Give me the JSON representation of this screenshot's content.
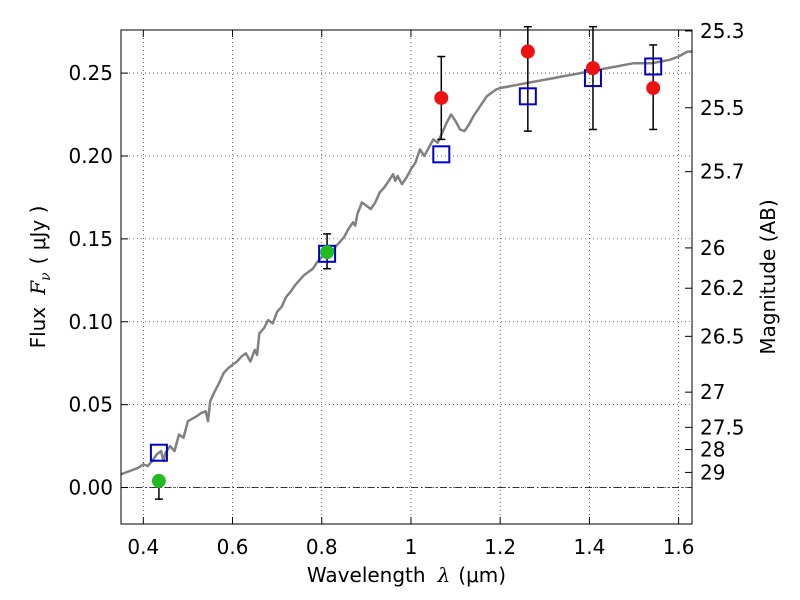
{
  "chart_data": {
    "type": "scatter",
    "xlabel_prefix": "Wavelength",
    "xlabel_symbol": "λ",
    "xlabel_unit": "(μm)",
    "ylabel_prefix": "Flux",
    "ylabel_symbol": "F",
    "ylabel_subscript": "ν",
    "ylabel_unit": "( μJy )",
    "y2label": "Magnitude (AB)",
    "xlim": [
      0.35,
      1.63
    ],
    "ylim": [
      -0.022,
      0.276
    ],
    "x_ticks": [
      {
        "value": 0.4,
        "label": "0.4"
      },
      {
        "value": 0.6,
        "label": "0.6"
      },
      {
        "value": 0.8,
        "label": "0.8"
      },
      {
        "value": 1.0,
        "label": "1"
      },
      {
        "value": 1.2,
        "label": "1.2"
      },
      {
        "value": 1.4,
        "label": "1.4"
      },
      {
        "value": 1.6,
        "label": "1.6"
      }
    ],
    "y_ticks": [
      {
        "value": 0.0,
        "label": "0.00"
      },
      {
        "value": 0.05,
        "label": "0.05"
      },
      {
        "value": 0.1,
        "label": "0.10"
      },
      {
        "value": 0.15,
        "label": "0.15"
      },
      {
        "value": 0.2,
        "label": "0.20"
      },
      {
        "value": 0.25,
        "label": "0.25"
      }
    ],
    "y2_ticks": [
      {
        "mag": 25.3,
        "label": "25.3"
      },
      {
        "mag": 25.5,
        "label": "25.5"
      },
      {
        "mag": 25.7,
        "label": "25.7"
      },
      {
        "mag": 26.0,
        "label": "26"
      },
      {
        "mag": 26.2,
        "label": "26.2"
      },
      {
        "mag": 26.5,
        "label": "26.5"
      },
      {
        "mag": 27.0,
        "label": "27"
      },
      {
        "mag": 27.5,
        "label": "27.5"
      },
      {
        "mag": 28.0,
        "label": "28"
      },
      {
        "mag": 29.0,
        "label": "29"
      }
    ],
    "grid": true,
    "zero_line": true,
    "model_spectrum": {
      "color": "#808080",
      "points": [
        [
          0.35,
          0.008
        ],
        [
          0.37,
          0.01
        ],
        [
          0.39,
          0.012
        ],
        [
          0.4,
          0.014
        ],
        [
          0.41,
          0.013
        ],
        [
          0.42,
          0.016
        ],
        [
          0.43,
          0.02
        ],
        [
          0.44,
          0.022
        ],
        [
          0.445,
          0.016
        ],
        [
          0.45,
          0.021
        ],
        [
          0.46,
          0.025
        ],
        [
          0.47,
          0.022
        ],
        [
          0.48,
          0.032
        ],
        [
          0.49,
          0.03
        ],
        [
          0.5,
          0.04
        ],
        [
          0.52,
          0.043
        ],
        [
          0.53,
          0.045
        ],
        [
          0.54,
          0.046
        ],
        [
          0.545,
          0.04
        ],
        [
          0.55,
          0.052
        ],
        [
          0.56,
          0.058
        ],
        [
          0.57,
          0.063
        ],
        [
          0.58,
          0.069
        ],
        [
          0.59,
          0.072
        ],
        [
          0.6,
          0.074
        ],
        [
          0.61,
          0.076
        ],
        [
          0.62,
          0.079
        ],
        [
          0.63,
          0.081
        ],
        [
          0.64,
          0.076
        ],
        [
          0.65,
          0.083
        ],
        [
          0.655,
          0.08
        ],
        [
          0.66,
          0.093
        ],
        [
          0.67,
          0.096
        ],
        [
          0.68,
          0.101
        ],
        [
          0.69,
          0.099
        ],
        [
          0.7,
          0.106
        ],
        [
          0.71,
          0.109
        ],
        [
          0.72,
          0.115
        ],
        [
          0.73,
          0.118
        ],
        [
          0.74,
          0.122
        ],
        [
          0.75,
          0.125
        ],
        [
          0.76,
          0.128
        ],
        [
          0.77,
          0.13
        ],
        [
          0.78,
          0.132
        ],
        [
          0.79,
          0.136
        ],
        [
          0.8,
          0.139
        ],
        [
          0.81,
          0.141
        ],
        [
          0.82,
          0.14
        ],
        [
          0.83,
          0.145
        ],
        [
          0.84,
          0.148
        ],
        [
          0.85,
          0.151
        ],
        [
          0.86,
          0.156
        ],
        [
          0.87,
          0.16
        ],
        [
          0.875,
          0.158
        ],
        [
          0.88,
          0.165
        ],
        [
          0.89,
          0.172
        ],
        [
          0.9,
          0.17
        ],
        [
          0.91,
          0.168
        ],
        [
          0.92,
          0.172
        ],
        [
          0.93,
          0.178
        ],
        [
          0.94,
          0.181
        ],
        [
          0.95,
          0.185
        ],
        [
          0.96,
          0.189
        ],
        [
          0.965,
          0.185
        ],
        [
          0.97,
          0.188
        ],
        [
          0.98,
          0.183
        ],
        [
          0.99,
          0.187
        ],
        [
          1.0,
          0.192
        ],
        [
          1.01,
          0.196
        ],
        [
          1.02,
          0.204
        ],
        [
          1.03,
          0.2
        ],
        [
          1.04,
          0.205
        ],
        [
          1.05,
          0.21
        ],
        [
          1.06,
          0.208
        ],
        [
          1.07,
          0.214
        ],
        [
          1.08,
          0.22
        ],
        [
          1.09,
          0.225
        ],
        [
          1.1,
          0.221
        ],
        [
          1.11,
          0.216
        ],
        [
          1.12,
          0.215
        ],
        [
          1.13,
          0.219
        ],
        [
          1.14,
          0.224
        ],
        [
          1.15,
          0.228
        ],
        [
          1.16,
          0.232
        ],
        [
          1.17,
          0.236
        ],
        [
          1.18,
          0.238
        ],
        [
          1.19,
          0.24
        ],
        [
          1.2,
          0.241
        ],
        [
          1.22,
          0.242
        ],
        [
          1.24,
          0.243
        ],
        [
          1.26,
          0.244
        ],
        [
          1.28,
          0.245
        ],
        [
          1.3,
          0.246
        ],
        [
          1.32,
          0.247
        ],
        [
          1.34,
          0.248
        ],
        [
          1.36,
          0.249
        ],
        [
          1.38,
          0.25
        ],
        [
          1.4,
          0.251
        ],
        [
          1.42,
          0.252
        ],
        [
          1.44,
          0.253
        ],
        [
          1.46,
          0.254
        ],
        [
          1.48,
          0.255
        ],
        [
          1.5,
          0.256
        ],
        [
          1.52,
          0.256
        ],
        [
          1.54,
          0.256
        ],
        [
          1.56,
          0.257
        ],
        [
          1.58,
          0.258
        ],
        [
          1.6,
          0.26
        ],
        [
          1.62,
          0.263
        ],
        [
          1.63,
          0.263
        ]
      ]
    },
    "series": [
      {
        "marker": "square-open",
        "color": "#0000cc",
        "points": [
          {
            "x": 0.435,
            "y": 0.021
          },
          {
            "x": 0.812,
            "y": 0.141
          },
          {
            "x": 1.068,
            "y": 0.201
          },
          {
            "x": 1.262,
            "y": 0.236
          },
          {
            "x": 1.408,
            "y": 0.247
          },
          {
            "x": 1.543,
            "y": 0.254
          }
        ]
      },
      {
        "marker": "circle-filled",
        "color": "#22bb22",
        "points": [
          {
            "x": 0.435,
            "y": 0.004,
            "yerr_low": 0.011,
            "yerr_high": 0.0
          },
          {
            "x": 0.812,
            "y": 0.142,
            "yerr_low": 0.01,
            "yerr_high": 0.011
          }
        ]
      },
      {
        "marker": "circle-filled",
        "color": "#ee1111",
        "points": [
          {
            "x": 1.068,
            "y": 0.235,
            "yerr_low": 0.025,
            "yerr_high": 0.025
          },
          {
            "x": 1.262,
            "y": 0.263,
            "yerr_low": 0.048,
            "yerr_high": 0.015
          },
          {
            "x": 1.408,
            "y": 0.253,
            "yerr_low": 0.037,
            "yerr_high": 0.025
          },
          {
            "x": 1.543,
            "y": 0.241,
            "yerr_low": 0.025,
            "yerr_high": 0.026
          }
        ]
      }
    ]
  }
}
